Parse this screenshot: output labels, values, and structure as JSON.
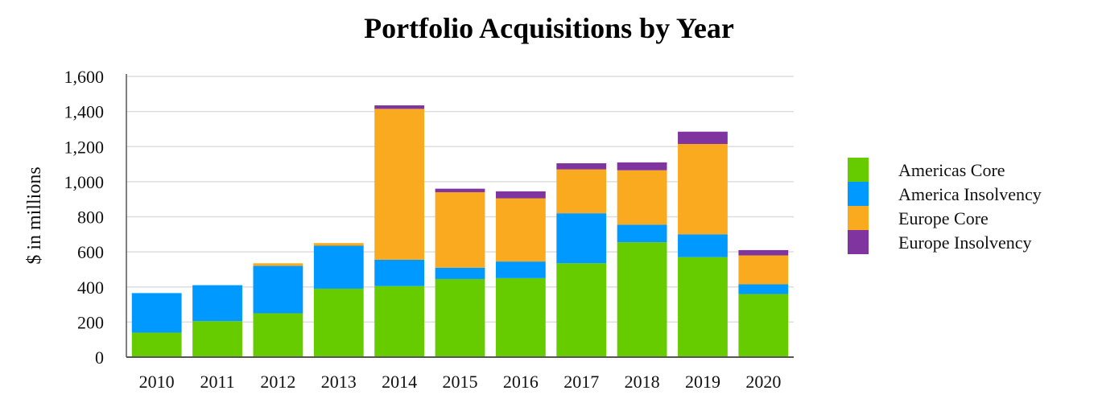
{
  "chart_data": {
    "type": "bar",
    "stacked": true,
    "title": "Portfolio Acquisitions by Year",
    "xlabel": "",
    "ylabel": "$ in millions",
    "ylim": [
      0,
      1600
    ],
    "yticks": [
      0,
      200,
      400,
      600,
      800,
      1000,
      1200,
      1400,
      1600
    ],
    "ytick_labels": [
      "0",
      "200",
      "400",
      "600",
      "800",
      "1,000",
      "1,200",
      "1,400",
      "1,600"
    ],
    "grid": true,
    "legend_position": "right",
    "categories": [
      "2010",
      "2011",
      "2012",
      "2013",
      "2014",
      "2015",
      "2016",
      "2017",
      "2018",
      "2019",
      "2020"
    ],
    "series": [
      {
        "name": "Americas Core",
        "color": "#66cc00",
        "values": [
          140,
          205,
          250,
          390,
          405,
          445,
          450,
          535,
          655,
          570,
          360
        ]
      },
      {
        "name": "America Insolvency",
        "color": "#0099ff",
        "values": [
          225,
          205,
          270,
          245,
          150,
          65,
          95,
          285,
          100,
          130,
          55
        ]
      },
      {
        "name": "Europe Core",
        "color": "#faaa1e",
        "values": [
          0,
          0,
          15,
          15,
          860,
          430,
          360,
          250,
          310,
          515,
          165
        ]
      },
      {
        "name": "Europe Insolvency",
        "color": "#8034a0",
        "values": [
          0,
          0,
          0,
          0,
          20,
          20,
          40,
          35,
          45,
          70,
          30
        ]
      }
    ]
  }
}
